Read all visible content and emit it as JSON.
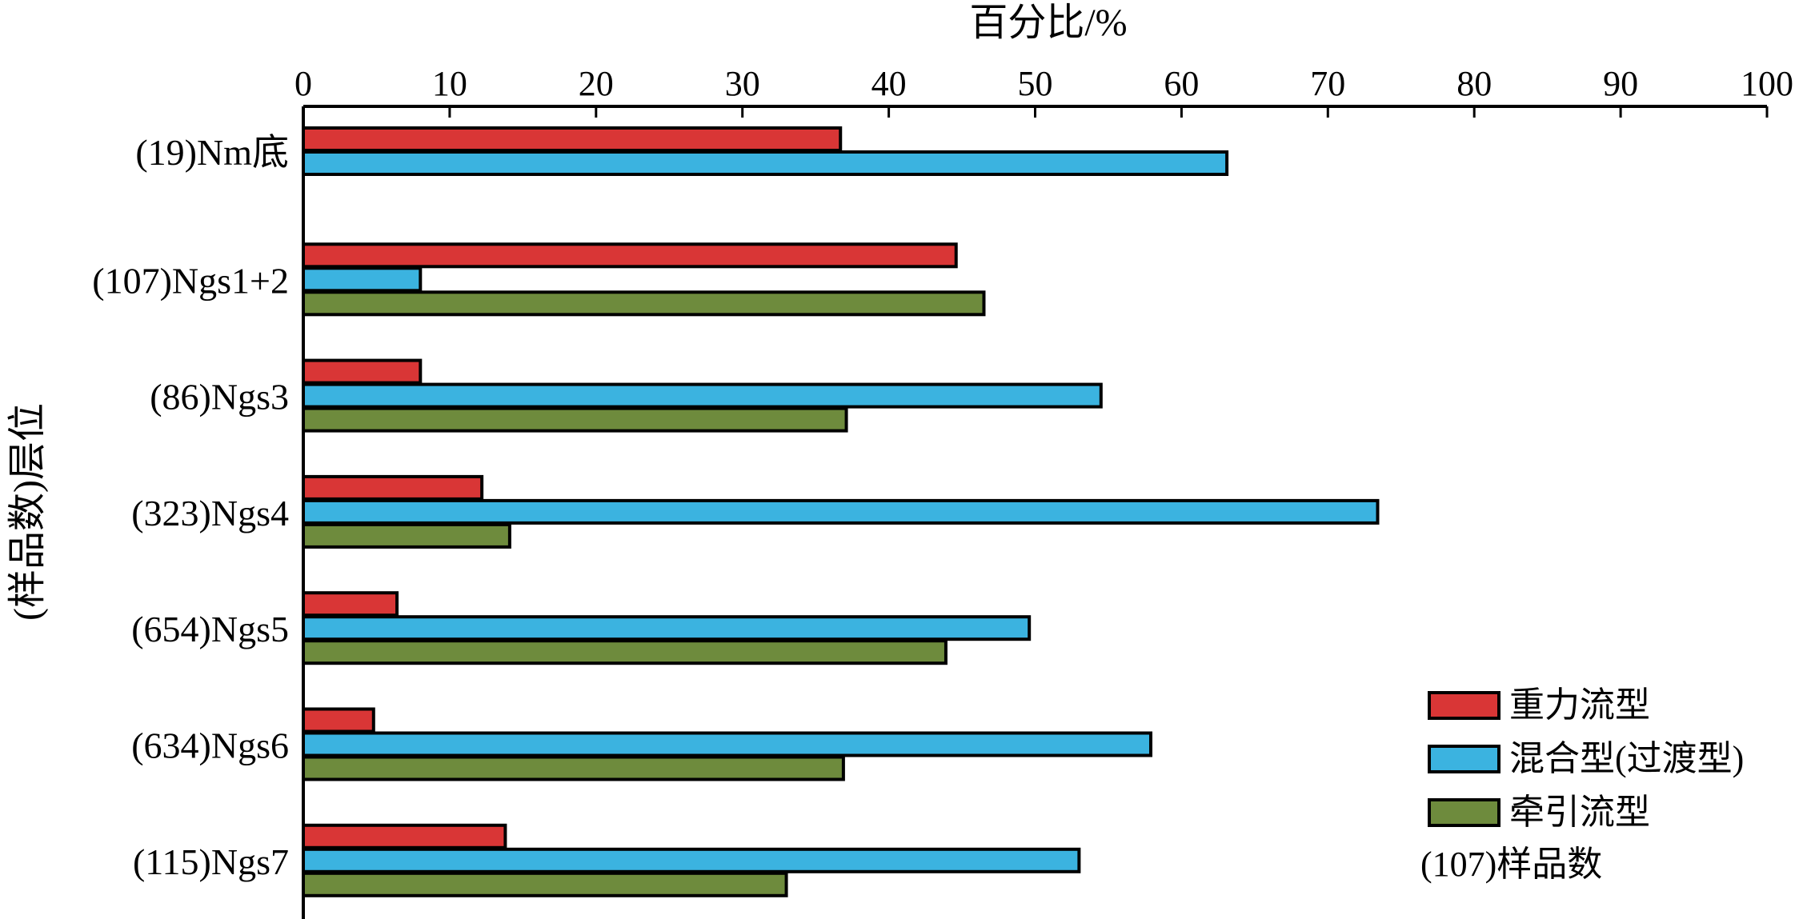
{
  "chart_data": {
    "type": "bar",
    "orientation": "horizontal",
    "xlabel": "百分比/%",
    "ylabel": "(样品数)层位",
    "xlim": [
      0,
      100
    ],
    "xticks": [
      "0",
      "10",
      "20",
      "30",
      "40",
      "50",
      "60",
      "70",
      "80",
      "90",
      "100"
    ],
    "categories": [
      "(19)Nm底",
      "(107)Ngs1+2",
      "(86)Ngs3",
      "(323)Ngs4",
      "(654)Ngs5",
      "(634)Ngs6",
      "(115)Ngs7"
    ],
    "series": [
      {
        "name": "重力流型",
        "color": "#d93636",
        "values": [
          36.7,
          44.6,
          8.0,
          12.2,
          6.4,
          4.8,
          13.8
        ]
      },
      {
        "name": "混合型(过渡型)",
        "color": "#3bb3e0",
        "values": [
          63.1,
          8.0,
          54.5,
          73.4,
          49.6,
          57.9,
          53.0
        ]
      },
      {
        "name": "牵引流型",
        "color": "#6e8b3d",
        "values": [
          null,
          46.5,
          37.1,
          14.1,
          43.9,
          36.9,
          33.0
        ]
      }
    ],
    "legend_note": "(107)样品数",
    "legend_position": "bottom-right",
    "grid": false
  }
}
